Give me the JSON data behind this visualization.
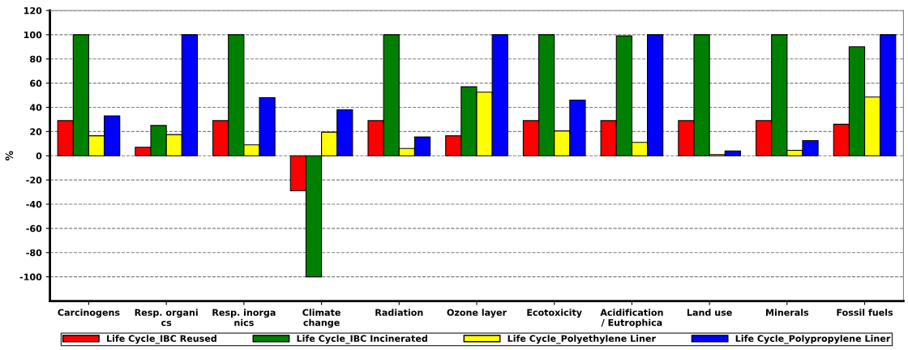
{
  "chart_data": {
    "type": "bar",
    "ylabel": "%",
    "categories": [
      "Carcinogens",
      "Resp. organi\ncs",
      "Resp. inorga\nnics",
      "Climate\nchange",
      "Radiation",
      "Ozone layer",
      "Ecotoxicity",
      "Acidification\n/ Eutrophica",
      "Land use",
      "Minerals",
      "Fossil fuels"
    ],
    "series": [
      {
        "name": "Life Cycle_IBC Reused",
        "color": "#ff0000",
        "values": [
          29,
          7,
          29,
          -29,
          29,
          16.5,
          29,
          29,
          29,
          29,
          26
        ]
      },
      {
        "name": "Life Cycle_IBC Incinerated",
        "color": "#008000",
        "values": [
          100,
          25,
          100,
          -100,
          100,
          57,
          100,
          99,
          100,
          100,
          90
        ]
      },
      {
        "name": "Life Cycle_Polyethylene Liner",
        "color": "#ffff00",
        "values": [
          16.5,
          17.5,
          9,
          19.5,
          6,
          52.5,
          20.5,
          11,
          1,
          4.5,
          48.5
        ]
      },
      {
        "name": "Life Cycle_Polypropylene Liner",
        "color": "#0000ff",
        "values": [
          33,
          100,
          48,
          38,
          15.5,
          100,
          46,
          100,
          4,
          12.5,
          100
        ]
      }
    ],
    "ylim": [
      -120,
      120
    ],
    "yticks": [
      -100,
      -80,
      -60,
      -40,
      -20,
      0,
      20,
      40,
      60,
      80,
      100,
      120
    ],
    "grid": "y",
    "legend": "bottom"
  }
}
